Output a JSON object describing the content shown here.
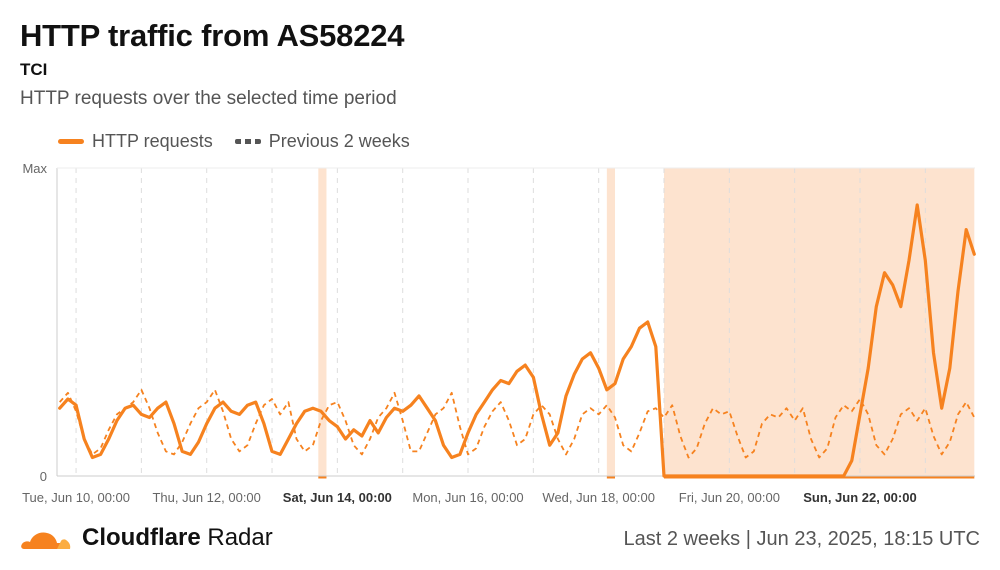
{
  "header": {
    "title": "HTTP traffic from AS58224",
    "subtitle": "TCI",
    "description": "HTTP requests over the selected time period"
  },
  "legend": {
    "current_label": "HTTP requests",
    "previous_label": "Previous 2 weeks"
  },
  "footer": {
    "brand_bold": "Cloudflare",
    "brand_light": "Radar",
    "range_text": "Last 2 weeks",
    "separator": "|",
    "timestamp": "Jun 23, 2025, 18:15 UTC"
  },
  "colors": {
    "accent": "#f6821f",
    "accent_fill": "#fde3cf",
    "previous": "#f6821f",
    "grid": "#dddddd",
    "axis_text": "#666666"
  },
  "chart_data": {
    "type": "line",
    "title": "HTTP traffic from AS58224",
    "subtitle": "TCI",
    "ylabel": "",
    "xlabel": "",
    "y_tick_labels": [
      "Max",
      "0"
    ],
    "ylim": [
      0,
      1
    ],
    "x_range_days": [
      "2025-06-09",
      "2025-06-23"
    ],
    "x_ticks": [
      {
        "label": "Tue, Jun 10, 00:00",
        "date": "2025-06-10",
        "bold": false
      },
      {
        "label": "Thu, Jun 12, 00:00",
        "date": "2025-06-12",
        "bold": false
      },
      {
        "label": "Sat, Jun 14, 00:00",
        "date": "2025-06-14",
        "bold": true
      },
      {
        "label": "Mon, Jun 16, 00:00",
        "date": "2025-06-16",
        "bold": false
      },
      {
        "label": "Wed, Jun 18, 00:00",
        "date": "2025-06-18",
        "bold": false
      },
      {
        "label": "Fri, Jun 20, 00:00",
        "date": "2025-06-20",
        "bold": false
      },
      {
        "label": "Sun, Jun 22, 00:00",
        "date": "2025-06-22",
        "bold": true
      }
    ],
    "annotations": [
      {
        "type": "outage",
        "start": "2025-06-13 17:00",
        "end": "2025-06-13 20:00"
      },
      {
        "type": "outage",
        "start": "2025-06-18 03:00",
        "end": "2025-06-18 06:00"
      },
      {
        "type": "outage",
        "start": "2025-06-19 00:00",
        "end": "2025-06-23 18:00"
      }
    ],
    "series": [
      {
        "name": "HTTP requests",
        "style": "solid",
        "points": [
          [
            "2025-06-09 18:00",
            0.22
          ],
          [
            "2025-06-09 21:00",
            0.25
          ],
          [
            "2025-06-10 00:00",
            0.23
          ],
          [
            "2025-06-10 03:00",
            0.12
          ],
          [
            "2025-06-10 06:00",
            0.06
          ],
          [
            "2025-06-10 09:00",
            0.07
          ],
          [
            "2025-06-10 12:00",
            0.12
          ],
          [
            "2025-06-10 15:00",
            0.18
          ],
          [
            "2025-06-10 18:00",
            0.22
          ],
          [
            "2025-06-10 21:00",
            0.23
          ],
          [
            "2025-06-11 00:00",
            0.2
          ],
          [
            "2025-06-11 03:00",
            0.19
          ],
          [
            "2025-06-11 06:00",
            0.22
          ],
          [
            "2025-06-11 09:00",
            0.24
          ],
          [
            "2025-06-11 12:00",
            0.17
          ],
          [
            "2025-06-11 15:00",
            0.08
          ],
          [
            "2025-06-11 18:00",
            0.07
          ],
          [
            "2025-06-11 21:00",
            0.11
          ],
          [
            "2025-06-12 00:00",
            0.17
          ],
          [
            "2025-06-12 03:00",
            0.22
          ],
          [
            "2025-06-12 06:00",
            0.24
          ],
          [
            "2025-06-12 09:00",
            0.21
          ],
          [
            "2025-06-12 12:00",
            0.2
          ],
          [
            "2025-06-12 15:00",
            0.23
          ],
          [
            "2025-06-12 18:00",
            0.24
          ],
          [
            "2025-06-12 21:00",
            0.17
          ],
          [
            "2025-06-13 00:00",
            0.08
          ],
          [
            "2025-06-13 03:00",
            0.07
          ],
          [
            "2025-06-13 06:00",
            0.12
          ],
          [
            "2025-06-13 09:00",
            0.17
          ],
          [
            "2025-06-13 12:00",
            0.21
          ],
          [
            "2025-06-13 15:00",
            0.22
          ],
          [
            "2025-06-13 18:00",
            0.21
          ],
          [
            "2025-06-13 21:00",
            0.18
          ],
          [
            "2025-06-14 00:00",
            0.16
          ],
          [
            "2025-06-14 03:00",
            0.12
          ],
          [
            "2025-06-14 06:00",
            0.15
          ],
          [
            "2025-06-14 09:00",
            0.13
          ],
          [
            "2025-06-14 12:00",
            0.18
          ],
          [
            "2025-06-14 15:00",
            0.14
          ],
          [
            "2025-06-14 18:00",
            0.19
          ],
          [
            "2025-06-14 21:00",
            0.22
          ],
          [
            "2025-06-15 00:00",
            0.21
          ],
          [
            "2025-06-15 03:00",
            0.23
          ],
          [
            "2025-06-15 06:00",
            0.26
          ],
          [
            "2025-06-15 09:00",
            0.22
          ],
          [
            "2025-06-15 12:00",
            0.18
          ],
          [
            "2025-06-15 15:00",
            0.1
          ],
          [
            "2025-06-15 18:00",
            0.06
          ],
          [
            "2025-06-15 21:00",
            0.07
          ],
          [
            "2025-06-16 00:00",
            0.14
          ],
          [
            "2025-06-16 03:00",
            0.2
          ],
          [
            "2025-06-16 06:00",
            0.24
          ],
          [
            "2025-06-16 09:00",
            0.28
          ],
          [
            "2025-06-16 12:00",
            0.31
          ],
          [
            "2025-06-16 15:00",
            0.3
          ],
          [
            "2025-06-16 18:00",
            0.34
          ],
          [
            "2025-06-16 21:00",
            0.36
          ],
          [
            "2025-06-17 00:00",
            0.32
          ],
          [
            "2025-06-17 03:00",
            0.2
          ],
          [
            "2025-06-17 06:00",
            0.1
          ],
          [
            "2025-06-17 09:00",
            0.14
          ],
          [
            "2025-06-17 12:00",
            0.26
          ],
          [
            "2025-06-17 15:00",
            0.33
          ],
          [
            "2025-06-17 18:00",
            0.38
          ],
          [
            "2025-06-17 21:00",
            0.4
          ],
          [
            "2025-06-18 00:00",
            0.35
          ],
          [
            "2025-06-18 03:00",
            0.28
          ],
          [
            "2025-06-18 06:00",
            0.3
          ],
          [
            "2025-06-18 09:00",
            0.38
          ],
          [
            "2025-06-18 12:00",
            0.42
          ],
          [
            "2025-06-18 15:00",
            0.48
          ],
          [
            "2025-06-18 18:00",
            0.5
          ],
          [
            "2025-06-18 21:00",
            0.42
          ],
          [
            "2025-06-19 00:00",
            0.0
          ],
          [
            "2025-06-19 06:00",
            0.0
          ],
          [
            "2025-06-20 00:00",
            0.0
          ],
          [
            "2025-06-20 12:00",
            0.0
          ],
          [
            "2025-06-21 00:00",
            0.0
          ],
          [
            "2025-06-21 12:00",
            0.0
          ],
          [
            "2025-06-21 18:00",
            0.0
          ],
          [
            "2025-06-21 21:00",
            0.05
          ],
          [
            "2025-06-22 00:00",
            0.2
          ],
          [
            "2025-06-22 03:00",
            0.35
          ],
          [
            "2025-06-22 06:00",
            0.55
          ],
          [
            "2025-06-22 09:00",
            0.66
          ],
          [
            "2025-06-22 12:00",
            0.62
          ],
          [
            "2025-06-22 15:00",
            0.55
          ],
          [
            "2025-06-22 18:00",
            0.7
          ],
          [
            "2025-06-22 21:00",
            0.88
          ],
          [
            "2025-06-23 00:00",
            0.7
          ],
          [
            "2025-06-23 03:00",
            0.4
          ],
          [
            "2025-06-23 06:00",
            0.22
          ],
          [
            "2025-06-23 09:00",
            0.35
          ],
          [
            "2025-06-23 12:00",
            0.6
          ],
          [
            "2025-06-23 15:00",
            0.8
          ],
          [
            "2025-06-23 18:00",
            0.72
          ]
        ]
      },
      {
        "name": "Previous 2 weeks",
        "style": "dashed",
        "points": [
          [
            "2025-06-09 18:00",
            0.24
          ],
          [
            "2025-06-09 21:00",
            0.27
          ],
          [
            "2025-06-10 00:00",
            0.21
          ],
          [
            "2025-06-10 03:00",
            0.12
          ],
          [
            "2025-06-10 06:00",
            0.07
          ],
          [
            "2025-06-10 09:00",
            0.09
          ],
          [
            "2025-06-10 12:00",
            0.15
          ],
          [
            "2025-06-10 15:00",
            0.2
          ],
          [
            "2025-06-10 18:00",
            0.22
          ],
          [
            "2025-06-10 21:00",
            0.24
          ],
          [
            "2025-06-11 00:00",
            0.28
          ],
          [
            "2025-06-11 03:00",
            0.22
          ],
          [
            "2025-06-11 06:00",
            0.14
          ],
          [
            "2025-06-11 09:00",
            0.08
          ],
          [
            "2025-06-11 12:00",
            0.07
          ],
          [
            "2025-06-11 15:00",
            0.11
          ],
          [
            "2025-06-11 18:00",
            0.17
          ],
          [
            "2025-06-11 21:00",
            0.22
          ],
          [
            "2025-06-12 00:00",
            0.24
          ],
          [
            "2025-06-12 03:00",
            0.28
          ],
          [
            "2025-06-12 06:00",
            0.21
          ],
          [
            "2025-06-12 09:00",
            0.12
          ],
          [
            "2025-06-12 12:00",
            0.08
          ],
          [
            "2025-06-12 15:00",
            0.1
          ],
          [
            "2025-06-12 18:00",
            0.17
          ],
          [
            "2025-06-12 21:00",
            0.23
          ],
          [
            "2025-06-13 00:00",
            0.25
          ],
          [
            "2025-06-13 03:00",
            0.2
          ],
          [
            "2025-06-13 06:00",
            0.24
          ],
          [
            "2025-06-13 09:00",
            0.12
          ],
          [
            "2025-06-13 12:00",
            0.08
          ],
          [
            "2025-06-13 15:00",
            0.1
          ],
          [
            "2025-06-13 18:00",
            0.18
          ],
          [
            "2025-06-13 21:00",
            0.23
          ],
          [
            "2025-06-14 00:00",
            0.24
          ],
          [
            "2025-06-14 03:00",
            0.18
          ],
          [
            "2025-06-14 06:00",
            0.1
          ],
          [
            "2025-06-14 09:00",
            0.07
          ],
          [
            "2025-06-14 12:00",
            0.12
          ],
          [
            "2025-06-14 15:00",
            0.19
          ],
          [
            "2025-06-14 18:00",
            0.22
          ],
          [
            "2025-06-14 21:00",
            0.27
          ],
          [
            "2025-06-15 00:00",
            0.18
          ],
          [
            "2025-06-15 03:00",
            0.08
          ],
          [
            "2025-06-15 06:00",
            0.08
          ],
          [
            "2025-06-15 09:00",
            0.14
          ],
          [
            "2025-06-15 12:00",
            0.2
          ],
          [
            "2025-06-15 15:00",
            0.22
          ],
          [
            "2025-06-15 18:00",
            0.27
          ],
          [
            "2025-06-15 21:00",
            0.16
          ],
          [
            "2025-06-16 00:00",
            0.07
          ],
          [
            "2025-06-16 03:00",
            0.09
          ],
          [
            "2025-06-16 06:00",
            0.16
          ],
          [
            "2025-06-16 09:00",
            0.21
          ],
          [
            "2025-06-16 12:00",
            0.24
          ],
          [
            "2025-06-16 15:00",
            0.18
          ],
          [
            "2025-06-16 18:00",
            0.1
          ],
          [
            "2025-06-16 21:00",
            0.12
          ],
          [
            "2025-06-17 00:00",
            0.2
          ],
          [
            "2025-06-17 03:00",
            0.23
          ],
          [
            "2025-06-17 06:00",
            0.2
          ],
          [
            "2025-06-17 09:00",
            0.12
          ],
          [
            "2025-06-17 12:00",
            0.07
          ],
          [
            "2025-06-17 15:00",
            0.12
          ],
          [
            "2025-06-17 18:00",
            0.2
          ],
          [
            "2025-06-17 21:00",
            0.22
          ],
          [
            "2025-06-18 00:00",
            0.2
          ],
          [
            "2025-06-18 03:00",
            0.23
          ],
          [
            "2025-06-18 06:00",
            0.19
          ],
          [
            "2025-06-18 09:00",
            0.1
          ],
          [
            "2025-06-18 12:00",
            0.08
          ],
          [
            "2025-06-18 15:00",
            0.14
          ],
          [
            "2025-06-18 18:00",
            0.21
          ],
          [
            "2025-06-18 21:00",
            0.22
          ],
          [
            "2025-06-19 00:00",
            0.19
          ],
          [
            "2025-06-19 03:00",
            0.23
          ],
          [
            "2025-06-19 06:00",
            0.13
          ],
          [
            "2025-06-19 09:00",
            0.06
          ],
          [
            "2025-06-19 12:00",
            0.09
          ],
          [
            "2025-06-19 15:00",
            0.17
          ],
          [
            "2025-06-19 18:00",
            0.22
          ],
          [
            "2025-06-19 21:00",
            0.2
          ],
          [
            "2025-06-20 00:00",
            0.21
          ],
          [
            "2025-06-20 03:00",
            0.13
          ],
          [
            "2025-06-20 06:00",
            0.06
          ],
          [
            "2025-06-20 09:00",
            0.08
          ],
          [
            "2025-06-20 12:00",
            0.17
          ],
          [
            "2025-06-20 15:00",
            0.2
          ],
          [
            "2025-06-20 18:00",
            0.19
          ],
          [
            "2025-06-20 21:00",
            0.22
          ],
          [
            "2025-06-21 00:00",
            0.18
          ],
          [
            "2025-06-21 03:00",
            0.22
          ],
          [
            "2025-06-21 06:00",
            0.12
          ],
          [
            "2025-06-21 09:00",
            0.06
          ],
          [
            "2025-06-21 12:00",
            0.09
          ],
          [
            "2025-06-21 15:00",
            0.19
          ],
          [
            "2025-06-21 18:00",
            0.23
          ],
          [
            "2025-06-21 21:00",
            0.21
          ],
          [
            "2025-06-22 00:00",
            0.25
          ],
          [
            "2025-06-22 03:00",
            0.2
          ],
          [
            "2025-06-22 06:00",
            0.1
          ],
          [
            "2025-06-22 09:00",
            0.07
          ],
          [
            "2025-06-22 12:00",
            0.12
          ],
          [
            "2025-06-22 15:00",
            0.2
          ],
          [
            "2025-06-22 18:00",
            0.22
          ],
          [
            "2025-06-22 21:00",
            0.18
          ],
          [
            "2025-06-23 00:00",
            0.22
          ],
          [
            "2025-06-23 03:00",
            0.13
          ],
          [
            "2025-06-23 06:00",
            0.07
          ],
          [
            "2025-06-23 09:00",
            0.11
          ],
          [
            "2025-06-23 12:00",
            0.2
          ],
          [
            "2025-06-23 15:00",
            0.24
          ],
          [
            "2025-06-23 18:00",
            0.19
          ]
        ]
      }
    ]
  }
}
